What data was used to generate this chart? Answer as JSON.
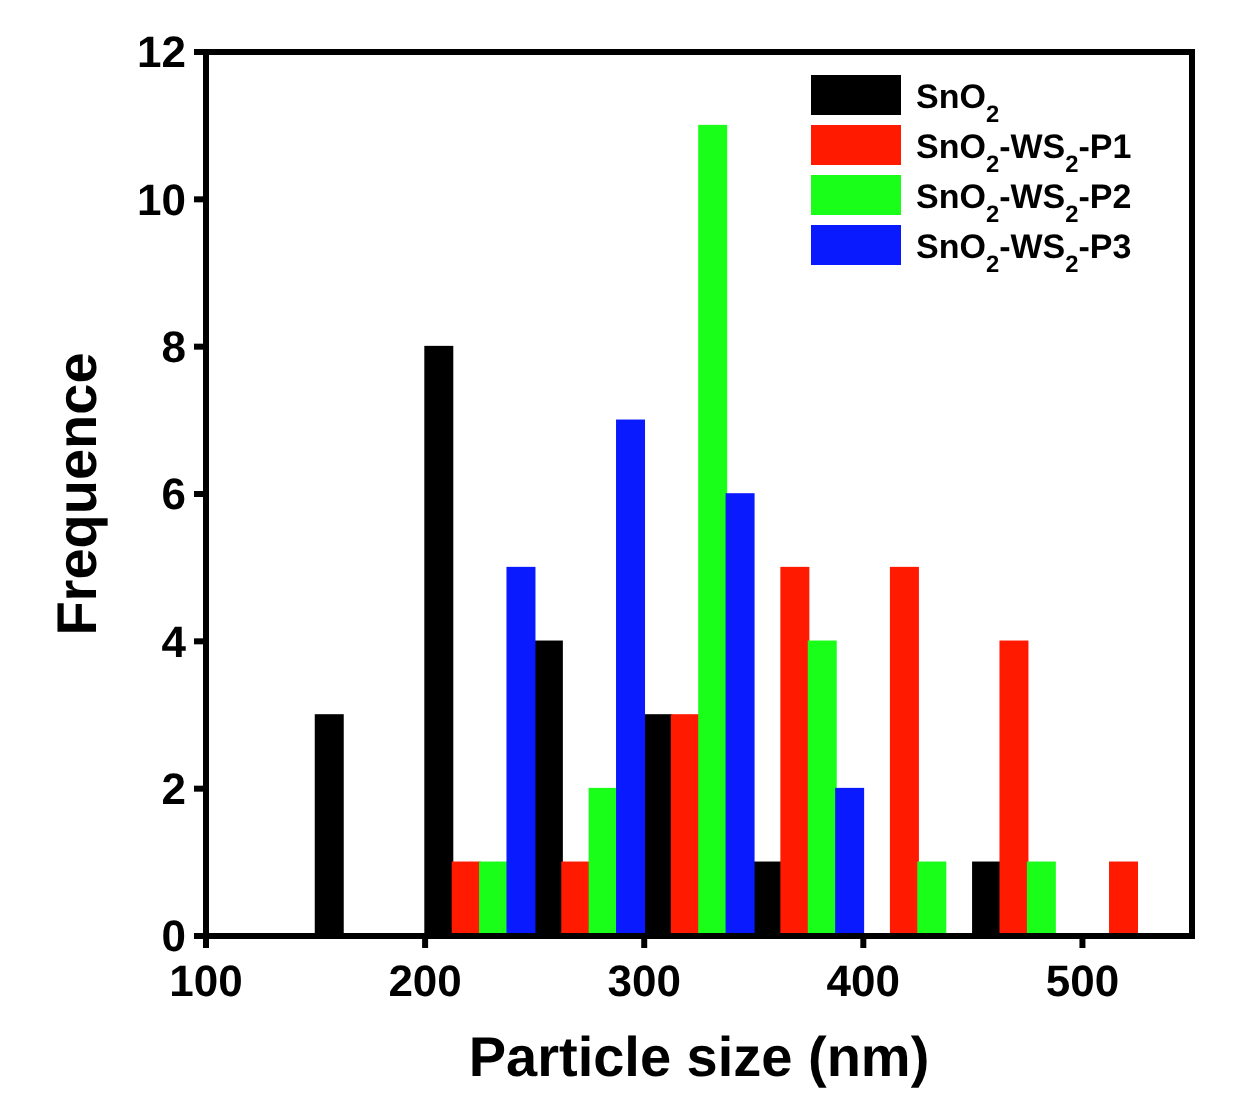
{
  "chart_data": {
    "type": "bar",
    "xlabel": "Particle size (nm)",
    "ylabel": "Frequence",
    "xlim": [
      100,
      550
    ],
    "xticks": [
      100,
      200,
      300,
      400,
      500
    ],
    "ylim": [
      0,
      12
    ],
    "yticks": [
      0,
      2,
      4,
      6,
      8,
      10,
      12
    ],
    "legend": "top right",
    "grid": false,
    "series": [
      {
        "name": "SnO$_{2}$",
        "color": "#000000",
        "x": [
          156.25,
          206.25,
          256.25,
          306.25,
          356.25,
          456.25
        ],
        "values": [
          3,
          8,
          4,
          3,
          1,
          1
        ]
      },
      {
        "name": "SnO$_{2}$-WS$_{2}$-P1",
        "color": "#ff1a00",
        "x": [
          218.75,
          268.75,
          318.75,
          368.75,
          418.75,
          468.75,
          518.75
        ],
        "values": [
          1,
          1,
          3,
          5,
          5,
          4,
          1
        ]
      },
      {
        "name": "SnO$_{2}$-WS$_{2}$-P2",
        "color": "#1aff1a",
        "x": [
          231.25,
          281.25,
          331.25,
          381.25,
          431.25,
          481.25
        ],
        "values": [
          1,
          2,
          11,
          4,
          1,
          1
        ]
      },
      {
        "name": "SnO$_{2}$-WS$_{2}$-P3",
        "color": "#0a1aff",
        "x": [
          243.75,
          293.75,
          343.75,
          393.75
        ],
        "values": [
          5,
          7,
          6,
          2
        ]
      }
    ]
  }
}
